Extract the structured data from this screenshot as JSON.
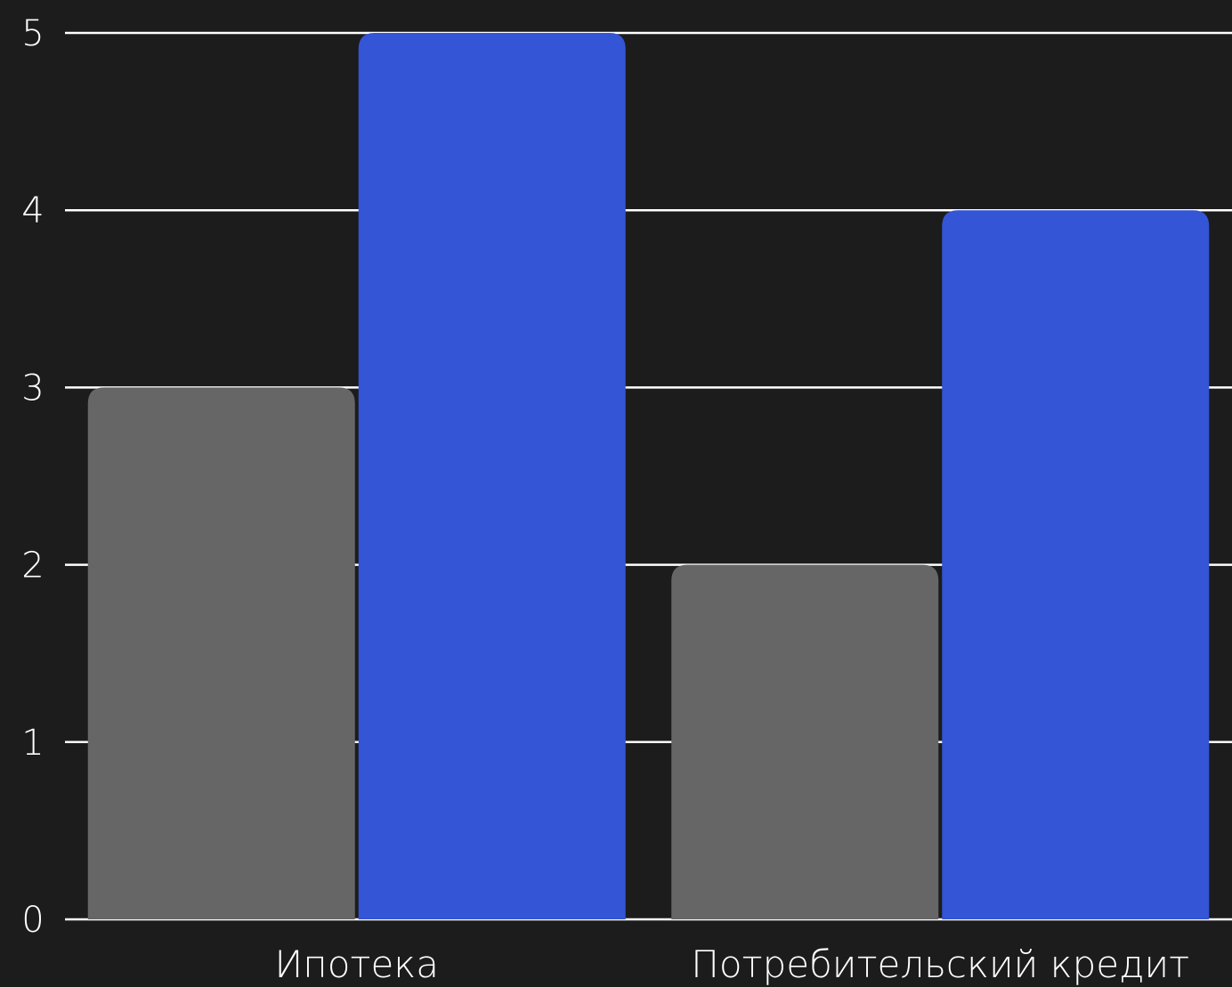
{
  "chart_data": {
    "type": "bar",
    "title": "",
    "xlabel": "",
    "ylabel": "",
    "categories": [
      "Ипотека",
      "Потребительский кредит"
    ],
    "series": [
      {
        "values": [
          3,
          2
        ],
        "color": "#666666"
      },
      {
        "values": [
          5,
          4
        ],
        "color": "#3355d6"
      }
    ],
    "ylim": [
      0,
      5
    ],
    "yticks": [
      "0",
      "1",
      "2",
      "3",
      "4",
      "5"
    ],
    "grid": true,
    "legend": "none",
    "background": "#1c1c1c",
    "grid_color": "#ffffff",
    "text_color": "#ffffff"
  }
}
